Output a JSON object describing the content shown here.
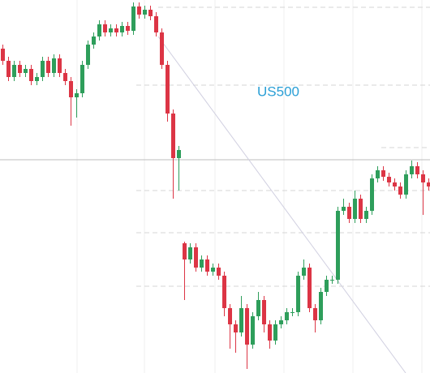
{
  "chart_data": {
    "type": "candlestick",
    "title": "US500",
    "ylim": [
      0,
      460
    ],
    "up_color": "#2e9e5b",
    "down_color": "#dc3545",
    "open": [
      400,
      385,
      365,
      380,
      370,
      375,
      360,
      365,
      385,
      370,
      388,
      370,
      360,
      340,
      345,
      380,
      405,
      415,
      430,
      420,
      425,
      420,
      428,
      422,
      452,
      442,
      448,
      440,
      420,
      380,
      320,
      265,
      160,
      140,
      155,
      130,
      140,
      125,
      130,
      120,
      80,
      60,
      50,
      80,
      35,
      70,
      90,
      60,
      40,
      60,
      65,
      75,
      75,
      120,
      130,
      80,
      65,
      100,
      115,
      115,
      200,
      205,
      190,
      215,
      190,
      200,
      240,
      250,
      242,
      235,
      230,
      220,
      245,
      255,
      245,
      235
    ],
    "high": [
      405,
      390,
      385,
      385,
      380,
      380,
      370,
      390,
      390,
      393,
      393,
      375,
      365,
      350,
      385,
      410,
      420,
      435,
      435,
      430,
      430,
      433,
      433,
      457,
      457,
      453,
      453,
      445,
      425,
      385,
      325,
      280,
      162,
      160,
      160,
      145,
      145,
      135,
      135,
      125,
      85,
      65,
      95,
      85,
      75,
      100,
      95,
      65,
      65,
      70,
      80,
      80,
      125,
      140,
      135,
      85,
      105,
      120,
      120,
      205,
      215,
      210,
      225,
      220,
      205,
      245,
      255,
      255,
      247,
      240,
      235,
      250,
      262,
      260,
      250,
      240
    ],
    "low": [
      380,
      360,
      360,
      365,
      365,
      355,
      355,
      360,
      365,
      365,
      365,
      355,
      305,
      315,
      340,
      375,
      400,
      410,
      415,
      415,
      415,
      415,
      417,
      417,
      437,
      437,
      435,
      415,
      375,
      310,
      215,
      225,
      90,
      135,
      125,
      125,
      120,
      120,
      115,
      70,
      30,
      25,
      45,
      5,
      30,
      65,
      50,
      30,
      35,
      55,
      60,
      70,
      70,
      115,
      75,
      50,
      60,
      95,
      110,
      110,
      195,
      185,
      185,
      185,
      185,
      195,
      235,
      237,
      230,
      225,
      215,
      215,
      240,
      240,
      195,
      225
    ],
    "close": [
      385,
      365,
      380,
      370,
      375,
      360,
      365,
      385,
      370,
      388,
      370,
      360,
      340,
      345,
      380,
      405,
      415,
      430,
      420,
      425,
      420,
      428,
      422,
      452,
      442,
      448,
      440,
      420,
      380,
      320,
      265,
      275,
      140,
      155,
      130,
      140,
      125,
      130,
      120,
      80,
      60,
      50,
      80,
      35,
      70,
      90,
      60,
      40,
      60,
      65,
      75,
      75,
      120,
      130,
      80,
      65,
      100,
      115,
      115,
      200,
      205,
      190,
      215,
      190,
      200,
      240,
      250,
      242,
      235,
      230,
      220,
      245,
      255,
      245,
      235,
      230
    ]
  }
}
